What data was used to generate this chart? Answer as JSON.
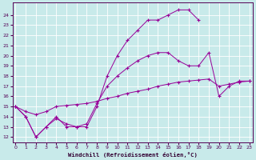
{
  "xlabel": "Windchill (Refroidissement éolien,°C)",
  "xlim": [
    -0.3,
    23.3
  ],
  "ylim": [
    11.5,
    25.2
  ],
  "xticks": [
    0,
    1,
    2,
    3,
    4,
    5,
    6,
    7,
    8,
    9,
    10,
    11,
    12,
    13,
    14,
    15,
    16,
    17,
    18,
    19,
    20,
    21,
    22,
    23
  ],
  "yticks": [
    12,
    13,
    14,
    15,
    16,
    17,
    18,
    19,
    20,
    21,
    22,
    23,
    24
  ],
  "bg_color": "#c8eaea",
  "line_color": "#990099",
  "line1_x": [
    0,
    1,
    2,
    3,
    4,
    5,
    6,
    7,
    8,
    9,
    10,
    11,
    12,
    13,
    14,
    15,
    16,
    17,
    18
  ],
  "line1_y": [
    15,
    14,
    12,
    13,
    14,
    13,
    13,
    13,
    15,
    18,
    20,
    21.5,
    22.5,
    23.5,
    23.5,
    24,
    24.5,
    24.5,
    23.5
  ],
  "line2_x": [
    0,
    1,
    2,
    3,
    4,
    5,
    6,
    7,
    8,
    9,
    10,
    11,
    12,
    13,
    14,
    15,
    16,
    17,
    18,
    19,
    20,
    21,
    22,
    23
  ],
  "line2_y": [
    15,
    14,
    12,
    13,
    13.8,
    13.3,
    13,
    13.3,
    15.3,
    17,
    18,
    18.8,
    19.5,
    20,
    20.3,
    20.3,
    19.5,
    19,
    19,
    20.3,
    16,
    17,
    17.5,
    17.5
  ],
  "line3_x": [
    0,
    1,
    2,
    3,
    4,
    5,
    6,
    7,
    8,
    9,
    10,
    11,
    12,
    13,
    14,
    15,
    16,
    17,
    18,
    19,
    20,
    21,
    22,
    23
  ],
  "line3_y": [
    15,
    14.5,
    14.2,
    14.5,
    15,
    15.1,
    15.2,
    15.3,
    15.5,
    15.8,
    16,
    16.3,
    16.5,
    16.7,
    17,
    17.2,
    17.4,
    17.5,
    17.6,
    17.7,
    17.0,
    17.2,
    17.4,
    17.5
  ]
}
